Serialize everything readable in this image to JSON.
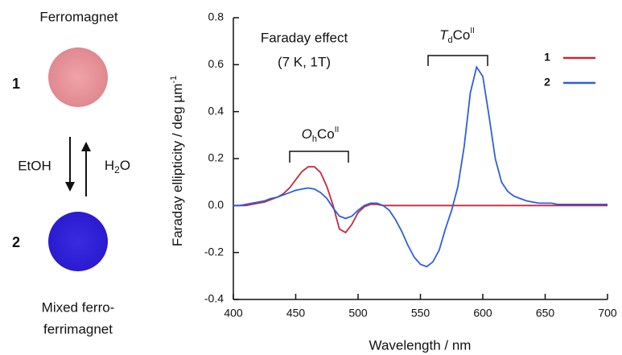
{
  "side_panel": {
    "top_label": "Ferromagnet",
    "top_number": "1",
    "left_arrow_label": "EtOH",
    "right_arrow_label": {
      "parts": [
        "H",
        "2",
        "O"
      ]
    },
    "bottom_number": "2",
    "bottom_label": [
      "Mixed ferro-",
      "ferrimagnet"
    ]
  },
  "chart_data": {
    "type": "line",
    "annotations": {
      "effect": "Faraday effect",
      "conditions": "(7 K, 1T)",
      "oh": {
        "parts": [
          "O",
          "h",
          "Co",
          "II"
        ]
      },
      "td": {
        "parts": [
          "T",
          "d",
          "Co",
          "II"
        ]
      }
    },
    "x_label": "Wavelength / nm",
    "y_label": {
      "parts": [
        "Faraday ellipticity / deg µm",
        "-1"
      ]
    },
    "xlim": [
      400,
      700
    ],
    "xticks": [
      400,
      450,
      500,
      550,
      600,
      650,
      700
    ],
    "ylim": [
      -0.4,
      0.8
    ],
    "yticks": [
      -0.4,
      -0.2,
      {
        "value": 0,
        "label": "0.0"
      },
      0.2,
      0.4,
      0.6,
      0.8
    ],
    "legend": "upper right",
    "x": [
      400,
      405,
      410,
      415,
      420,
      425,
      430,
      435,
      440,
      445,
      450,
      455,
      460,
      465,
      470,
      475,
      480,
      485,
      490,
      495,
      500,
      505,
      510,
      515,
      520,
      525,
      530,
      535,
      540,
      545,
      550,
      555,
      560,
      565,
      570,
      575,
      580,
      585,
      590,
      595,
      600,
      605,
      610,
      615,
      620,
      625,
      630,
      635,
      640,
      645,
      650,
      655,
      660,
      665,
      670,
      675,
      680,
      685,
      690,
      695,
      700
    ],
    "series": [
      {
        "name": "1",
        "color": "#c8283c",
        "values": [
          0,
          0,
          0,
          0.005,
          0.01,
          0.015,
          0.025,
          0.035,
          0.05,
          0.075,
          0.11,
          0.145,
          0.165,
          0.165,
          0.14,
          0.08,
          0,
          -0.1,
          -0.115,
          -0.08,
          -0.03,
          -0.005,
          0.005,
          0.005,
          0,
          0,
          0,
          0,
          0,
          0,
          0,
          0,
          0,
          0,
          0,
          0,
          0,
          0,
          0,
          0,
          0,
          0,
          0,
          0,
          0,
          0,
          0,
          0,
          0,
          0,
          0,
          0,
          0,
          0,
          0,
          0,
          0,
          0,
          0,
          0,
          0
        ]
      },
      {
        "name": "2",
        "color": "#2d5fdc",
        "values": [
          0,
          0,
          0.005,
          0.01,
          0.015,
          0.02,
          0.03,
          0.035,
          0.045,
          0.055,
          0.065,
          0.07,
          0.075,
          0.07,
          0.055,
          0.03,
          -0.01,
          -0.045,
          -0.055,
          -0.045,
          -0.02,
          0,
          0.01,
          0.01,
          0,
          -0.02,
          -0.06,
          -0.11,
          -0.17,
          -0.22,
          -0.25,
          -0.26,
          -0.24,
          -0.19,
          -0.1,
          -0.02,
          0.08,
          0.25,
          0.48,
          0.59,
          0.55,
          0.38,
          0.2,
          0.1,
          0.06,
          0.04,
          0.03,
          0.02,
          0.015,
          0.01,
          0.01,
          0.01,
          0.005,
          0.005,
          0.005,
          0.005,
          0.005,
          0.005,
          0.005,
          0.005,
          0.005
        ]
      }
    ]
  }
}
